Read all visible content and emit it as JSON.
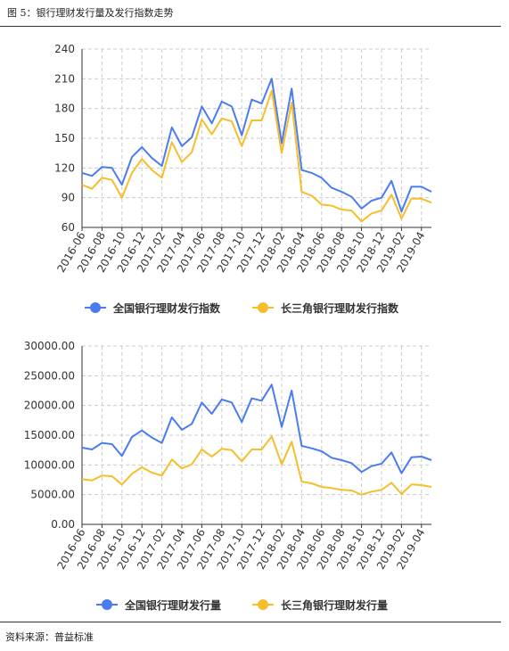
{
  "page": {
    "figure_title": "图 5：银行理财发行量及发行指数走势",
    "source": "资料来源：普益标准"
  },
  "colors": {
    "national": "#4a7cf0",
    "yrd": "#f6be2a",
    "grid": "#cccccc",
    "axis": "#333333"
  },
  "chart_data": [
    {
      "type": "line",
      "x": [
        "2016-06",
        "2016-07",
        "2016-08",
        "2016-09",
        "2016-10",
        "2016-11",
        "2016-12",
        "2017-01",
        "2017-02",
        "2017-03",
        "2017-04",
        "2017-05",
        "2017-06",
        "2017-07",
        "2017-08",
        "2017-09",
        "2017-10",
        "2017-11",
        "2017-12",
        "2018-01",
        "2018-02",
        "2018-03",
        "2018-04",
        "2018-05",
        "2018-06",
        "2018-07",
        "2018-08",
        "2018-09",
        "2018-10",
        "2018-11",
        "2018-12",
        "2019-01",
        "2019-02",
        "2019-03",
        "2019-04",
        "2019-05"
      ],
      "x_tick_labels": [
        "2016-06",
        "2016-08",
        "2016-10",
        "2016-12",
        "2017-02",
        "2017-04",
        "2017-06",
        "2017-08",
        "2017-10",
        "2017-12",
        "2018-02",
        "2018-04",
        "2018-06",
        "2018-08",
        "2018-10",
        "2018-12",
        "2019-02",
        "2019-04"
      ],
      "y_ticks": [
        "60",
        "90",
        "120",
        "150",
        "180",
        "210",
        "240"
      ],
      "ylim": [
        60,
        240
      ],
      "grid": true,
      "legend_position": "bottom",
      "series": [
        {
          "name": "全国银行理财发行指数",
          "color": "#4a7cf0",
          "values": [
            115,
            112,
            121,
            120,
            103,
            131,
            141,
            130,
            122,
            161,
            142,
            151,
            182,
            165,
            187,
            182,
            153,
            189,
            185,
            210,
            145,
            200,
            118,
            115,
            110,
            100,
            96,
            91,
            79,
            87,
            90,
            107,
            76,
            101,
            101,
            96
          ]
        },
        {
          "name": "长三角银行理财发行指数",
          "color": "#f6be2a",
          "values": [
            103,
            99,
            110,
            108,
            90,
            115,
            129,
            118,
            110,
            146,
            126,
            136,
            169,
            154,
            170,
            167,
            142,
            168,
            168,
            198,
            135,
            186,
            96,
            92,
            83,
            82,
            78,
            77,
            66,
            74,
            77,
            93,
            69,
            89,
            89,
            85
          ]
        }
      ]
    },
    {
      "type": "line",
      "x": [
        "2016-06",
        "2016-07",
        "2016-08",
        "2016-09",
        "2016-10",
        "2016-11",
        "2016-12",
        "2017-01",
        "2017-02",
        "2017-03",
        "2017-04",
        "2017-05",
        "2017-06",
        "2017-07",
        "2017-08",
        "2017-09",
        "2017-10",
        "2017-11",
        "2017-12",
        "2018-01",
        "2018-02",
        "2018-03",
        "2018-04",
        "2018-05",
        "2018-06",
        "2018-07",
        "2018-08",
        "2018-09",
        "2018-10",
        "2018-11",
        "2018-12",
        "2019-01",
        "2019-02",
        "2019-03",
        "2019-04",
        "2019-05"
      ],
      "x_tick_labels": [
        "2016-06",
        "2016-08",
        "2016-10",
        "2016-12",
        "2017-02",
        "2017-04",
        "2017-06",
        "2017-08",
        "2017-10",
        "2017-12",
        "2018-02",
        "2018-04",
        "2018-06",
        "2018-08",
        "2018-10",
        "2018-12",
        "2019-02",
        "2019-04"
      ],
      "y_ticks": [
        "0.00",
        "5000.00",
        "10000.00",
        "15000.00",
        "20000.00",
        "25000.00",
        "30000.00"
      ],
      "ylim": [
        0,
        30000
      ],
      "grid": true,
      "legend_position": "bottom",
      "series": [
        {
          "name": "全国银行理财发行量",
          "color": "#4a7cf0",
          "values": [
            12900,
            12600,
            13700,
            13500,
            11500,
            14700,
            15800,
            14600,
            13700,
            18000,
            15900,
            16900,
            20500,
            18600,
            21000,
            20500,
            17200,
            21200,
            20800,
            23500,
            16400,
            22500,
            13200,
            12800,
            12300,
            11200,
            10800,
            10300,
            8800,
            9800,
            10200,
            12100,
            8600,
            11300,
            11400,
            10800
          ]
        },
        {
          "name": "长三角银行理财发行量",
          "color": "#f6be2a",
          "values": [
            7600,
            7400,
            8200,
            8100,
            6700,
            8500,
            9600,
            8700,
            8200,
            10900,
            9400,
            10100,
            12600,
            11400,
            12700,
            12500,
            10600,
            12600,
            12600,
            14800,
            10100,
            13900,
            7200,
            6900,
            6300,
            6100,
            5800,
            5700,
            5000,
            5500,
            5800,
            7000,
            5100,
            6700,
            6600,
            6300
          ]
        }
      ]
    }
  ]
}
